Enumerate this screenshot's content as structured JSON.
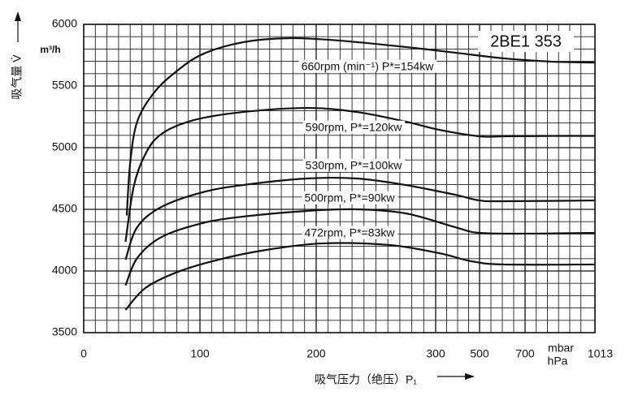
{
  "chart_data": {
    "type": "line",
    "title": "2BE1 353",
    "x_label": "吸气压力（绝压）P₁",
    "y_label": "吸气量 V̇",
    "y_unit": "m³/h",
    "x_unit_top": "mbar",
    "x_unit_bottom": "hPa",
    "xlim": [
      0,
      1013
    ],
    "ylim": [
      3500,
      6000
    ],
    "xticks": [
      0,
      100,
      200,
      300,
      500,
      700,
      1013
    ],
    "yticks": [
      3500,
      4000,
      4500,
      5000,
      5500,
      6000
    ],
    "x_minor_ticks": [
      10,
      20,
      30,
      40,
      50,
      60,
      70,
      80,
      90,
      110,
      120,
      130,
      140,
      150,
      160,
      170,
      180,
      190,
      210,
      220,
      230,
      240,
      250,
      260,
      270,
      280,
      290,
      350,
      400,
      450,
      550,
      600,
      650,
      750,
      800,
      850,
      900,
      950
    ],
    "y_minor_ticks": [
      3600,
      3700,
      3800,
      3900,
      4100,
      4200,
      4300,
      4400,
      4600,
      4700,
      4800,
      4900,
      5100,
      5200,
      5300,
      5400,
      5600,
      5700,
      5800,
      5900
    ],
    "grid": true,
    "series": [
      {
        "name": "660rpm (min⁻¹) P*=154kw",
        "color": "#111111",
        "x": [
          37,
          40,
          46,
          60,
          78,
          102,
          137,
          178,
          220,
          275,
          389,
          607,
          824,
          1013
        ],
        "values": [
          4450,
          4880,
          5210,
          5440,
          5605,
          5757,
          5855,
          5888,
          5868,
          5816,
          5770,
          5724,
          5697,
          5690
        ]
      },
      {
        "name": "590rpm, P*=120kw",
        "color": "#111111",
        "x": [
          36,
          43,
          53,
          67,
          95,
          137,
          192,
          234,
          275,
          315,
          500,
          607,
          824,
          1013
        ],
        "values": [
          4237,
          4684,
          4947,
          5112,
          5224,
          5289,
          5322,
          5289,
          5211,
          5145,
          5092,
          5092,
          5095,
          5095
        ]
      },
      {
        "name": "530rpm, P*=100kw",
        "color": "#111111",
        "x": [
          36,
          46,
          67,
          102,
          137,
          192,
          234,
          275,
          389,
          500,
          607,
          1013
        ],
        "values": [
          4092,
          4355,
          4520,
          4638,
          4697,
          4750,
          4750,
          4697,
          4618,
          4572,
          4566,
          4572
        ]
      },
      {
        "name": "500rpm, P*=90kw",
        "color": "#111111",
        "x": [
          36,
          46,
          67,
          102,
          137,
          192,
          234,
          275,
          389,
          500,
          722,
          1013
        ],
        "values": [
          3882,
          4105,
          4276,
          4388,
          4441,
          4487,
          4500,
          4467,
          4355,
          4309,
          4303,
          4309
        ]
      },
      {
        "name": "472rpm, P*=83kw",
        "color": "#111111",
        "x": [
          36,
          53,
          81,
          116,
          157,
          206,
          261,
          315,
          463,
          607,
          1013
        ],
        "values": [
          3684,
          3862,
          3993,
          4092,
          4171,
          4224,
          4211,
          4145,
          4079,
          4053,
          4053
        ]
      }
    ]
  }
}
